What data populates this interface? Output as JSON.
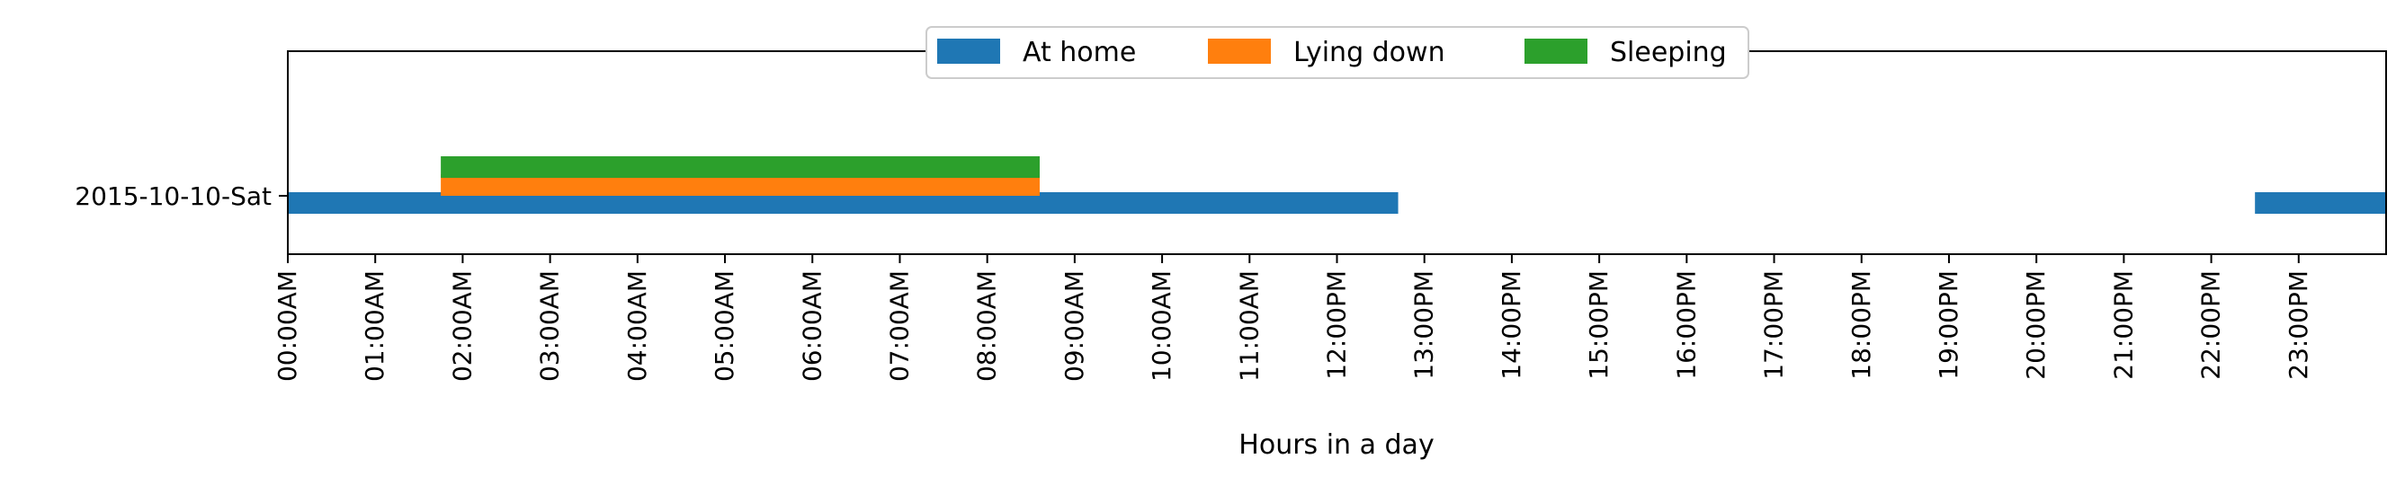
{
  "chart_data": {
    "type": "timeline",
    "xlabel": "Hours in a day",
    "ylabel": "",
    "xlim": [
      0,
      24
    ],
    "x_unit": "hour of day",
    "categories": [
      "2015-10-10-Sat"
    ],
    "x_tick_labels": [
      "00:00AM",
      "01:00AM",
      "02:00AM",
      "03:00AM",
      "04:00AM",
      "05:00AM",
      "06:00AM",
      "07:00AM",
      "08:00AM",
      "09:00AM",
      "10:00AM",
      "11:00AM",
      "12:00PM",
      "13:00PM",
      "14:00PM",
      "15:00PM",
      "16:00PM",
      "17:00PM",
      "18:00PM",
      "19:00PM",
      "20:00PM",
      "21:00PM",
      "22:00PM",
      "23:00PM"
    ],
    "legend_position": "top-center",
    "grid": false,
    "series": [
      {
        "name": "At home",
        "color": "#1f77b4",
        "intervals": [
          {
            "day": "2015-10-10-Sat",
            "start": 0.0,
            "end": 12.7
          },
          {
            "day": "2015-10-10-Sat",
            "start": 22.5,
            "end": 24.0
          }
        ]
      },
      {
        "name": "Lying down",
        "color": "#ff7f0e",
        "intervals": [
          {
            "day": "2015-10-10-Sat",
            "start": 1.75,
            "end": 8.6
          }
        ]
      },
      {
        "name": "Sleeping",
        "color": "#2ca02c",
        "intervals": [
          {
            "day": "2015-10-10-Sat",
            "start": 1.75,
            "end": 8.6
          }
        ]
      }
    ]
  }
}
